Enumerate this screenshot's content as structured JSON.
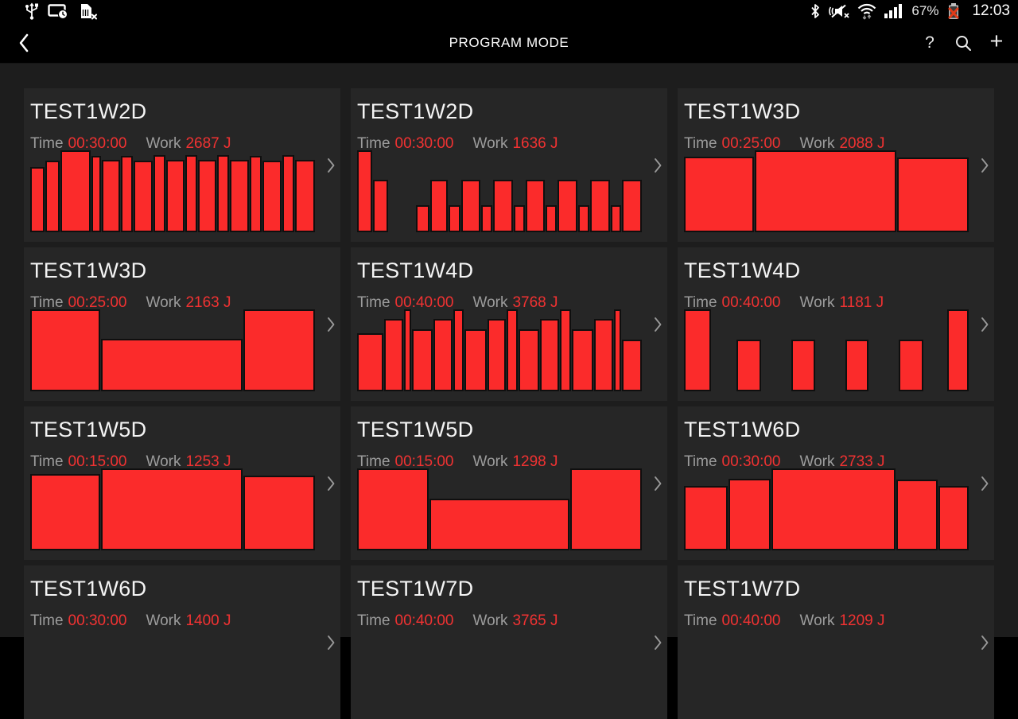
{
  "status_bar": {
    "time": "12:03",
    "battery_percent": "67%"
  },
  "action_bar": {
    "title": "PROGRAM MODE",
    "help_label": "?",
    "add_label": "+"
  },
  "labels": {
    "time": "Time",
    "work": "Work"
  },
  "colors": {
    "bar_red": "#fb2b2b",
    "value_red": "#f13232",
    "card_bg": "#262626",
    "page_bg": "#1d1d1d",
    "label_gray": "#9c9c9c"
  },
  "programs": [
    {
      "name": "TEST1W2D",
      "time": "00:30:00",
      "work": "2687 J",
      "chart": {
        "type": "bar",
        "segments": [
          [
            1.5,
            0.8
          ],
          [
            1.5,
            0.87
          ],
          [
            3.7,
            1.0
          ],
          [
            0.9,
            0.93
          ],
          [
            2.1,
            0.88
          ],
          [
            1.2,
            0.93
          ],
          [
            2.2,
            0.87
          ],
          [
            1.1,
            0.94
          ],
          [
            2.1,
            0.88
          ],
          [
            1.2,
            0.94
          ],
          [
            2.1,
            0.88
          ],
          [
            1.2,
            0.94
          ],
          [
            2.1,
            0.88
          ],
          [
            1.2,
            0.93
          ],
          [
            2.2,
            0.87
          ],
          [
            1.2,
            0.94
          ],
          [
            2.3,
            0.88
          ]
        ]
      }
    },
    {
      "name": "TEST1W2D",
      "time": "00:30:00",
      "work": "1636 J",
      "chart": {
        "type": "bar",
        "segments": [
          [
            1.7,
            1.0
          ],
          [
            1.7,
            0.64
          ],
          [
            3.9,
            0
          ],
          [
            1.5,
            0.33
          ],
          [
            2.1,
            0.64
          ],
          [
            1.2,
            0.33
          ],
          [
            2.4,
            0.64
          ],
          [
            1.1,
            0.33
          ],
          [
            2.4,
            0.64
          ],
          [
            1.1,
            0.33
          ],
          [
            2.4,
            0.64
          ],
          [
            1.1,
            0.33
          ],
          [
            2.4,
            0.64
          ],
          [
            1.1,
            0.33
          ],
          [
            2.4,
            0.64
          ],
          [
            1.1,
            0.33
          ],
          [
            2.4,
            0.64
          ]
        ]
      }
    },
    {
      "name": "TEST1W3D",
      "time": "00:25:00",
      "work": "2088 J",
      "chart": {
        "type": "bar",
        "segments": [
          [
            2.9,
            0.92
          ],
          [
            6.0,
            1.0
          ],
          [
            2.95,
            0.91
          ]
        ]
      }
    },
    {
      "name": "TEST1W3D",
      "time": "00:25:00",
      "work": "2163 J",
      "chart": {
        "type": "bar",
        "segments": [
          [
            2.9,
            1.0
          ],
          [
            6.0,
            0.64
          ],
          [
            2.95,
            1.0
          ]
        ]
      }
    },
    {
      "name": "TEST1W4D",
      "time": "00:40:00",
      "work": "3768 J",
      "chart": {
        "type": "bar",
        "segments": [
          [
            3.9,
            0.71
          ],
          [
            2.6,
            0.88
          ],
          [
            0.7,
            1.0
          ],
          [
            2.9,
            0.76
          ],
          [
            2.6,
            0.88
          ],
          [
            1.3,
            1.0
          ],
          [
            3.1,
            0.76
          ],
          [
            2.6,
            0.88
          ],
          [
            1.3,
            1.0
          ],
          [
            3.0,
            0.76
          ],
          [
            2.6,
            0.88
          ],
          [
            1.3,
            1.0
          ],
          [
            3.1,
            0.76
          ],
          [
            2.6,
            0.88
          ],
          [
            0.7,
            1.0
          ],
          [
            2.8,
            0.63
          ]
        ]
      }
    },
    {
      "name": "TEST1W4D",
      "time": "00:40:00",
      "work": "1181 J",
      "chart": {
        "type": "bar",
        "segments": [
          [
            3.3,
            1.0
          ],
          [
            3.5,
            0
          ],
          [
            2.9,
            0.63
          ],
          [
            4.1,
            0
          ],
          [
            2.9,
            0.63
          ],
          [
            4.1,
            0
          ],
          [
            2.8,
            0.63
          ],
          [
            4.1,
            0
          ],
          [
            2.9,
            0.63
          ],
          [
            3.2,
            0
          ],
          [
            2.6,
            1.0
          ]
        ]
      }
    },
    {
      "name": "TEST1W5D",
      "time": "00:15:00",
      "work": "1253 J",
      "chart": {
        "type": "bar",
        "segments": [
          [
            2.9,
            0.93
          ],
          [
            6.0,
            1.0
          ],
          [
            2.95,
            0.91
          ]
        ]
      }
    },
    {
      "name": "TEST1W5D",
      "time": "00:15:00",
      "work": "1298 J",
      "chart": {
        "type": "bar",
        "segments": [
          [
            3.2,
            1.0
          ],
          [
            6.4,
            0.63
          ],
          [
            3.2,
            1.0
          ]
        ]
      }
    },
    {
      "name": "TEST1W6D",
      "time": "00:30:00",
      "work": "2733 J",
      "chart": {
        "type": "bar",
        "segments": [
          [
            1.8,
            0.79
          ],
          [
            1.75,
            0.87
          ],
          [
            5.4,
            1.0
          ],
          [
            1.7,
            0.86
          ],
          [
            1.2,
            0.79
          ]
        ]
      }
    },
    {
      "name": "TEST1W6D",
      "time": "00:30:00",
      "work": "1400 J",
      "chart": {
        "type": "bar",
        "segments": []
      }
    },
    {
      "name": "TEST1W7D",
      "time": "00:40:00",
      "work": "3765 J",
      "chart": {
        "type": "bar",
        "segments": []
      }
    },
    {
      "name": "TEST1W7D",
      "time": "00:40:00",
      "work": "1209 J",
      "chart": {
        "type": "bar",
        "segments": []
      }
    }
  ]
}
